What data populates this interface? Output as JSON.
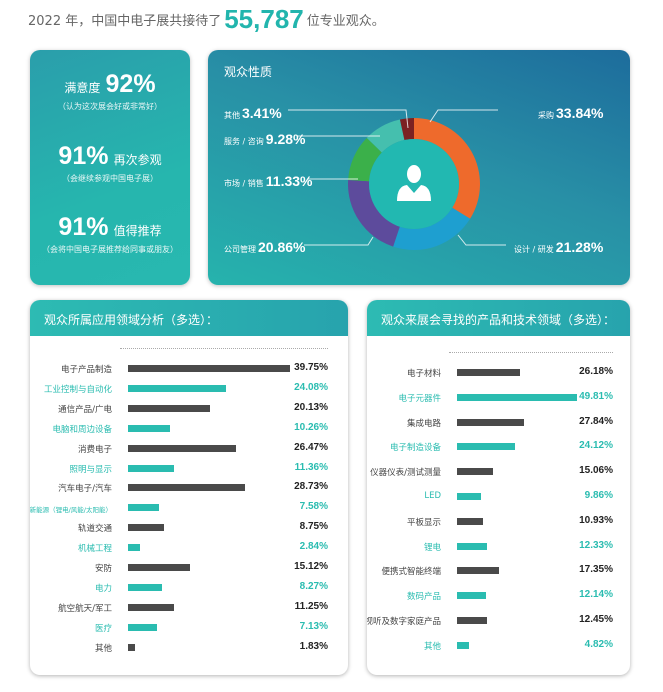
{
  "headline": {
    "prefix": "2022 年，中国中电子展共接待了",
    "number": "55,787",
    "suffix": "位专业观众。"
  },
  "stats": [
    {
      "label": "满意度",
      "value": "92%",
      "note": "（认为这次展会好或非常好）"
    },
    {
      "label": "再次参观",
      "value": "91%",
      "note": "（会继续参观中国电子展）"
    },
    {
      "label": "值得推荐",
      "value": "91%",
      "note": "（会将中国电子展推荐给同事或朋友）"
    }
  ],
  "colors": {
    "teal": "#2abcb0",
    "dark": "#4a4a4a"
  },
  "chart_data": [
    {
      "type": "pie",
      "title": "观众性质",
      "icon": "person-icon",
      "categories": [
        "采购",
        "设计 / 研发",
        "公司管理",
        "市场 / 销售",
        "服务 / 咨询",
        "其他"
      ],
      "values": [
        33.84,
        21.28,
        20.86,
        11.33,
        9.28,
        3.41
      ],
      "labels": [
        "33.84%",
        "21.28%",
        "20.86%",
        "11.33%",
        "9.28%",
        "3.41%"
      ],
      "colors": [
        "#ee6a2c",
        "#1e9fd0",
        "#5d4b9c",
        "#3bb04a",
        "#45bfae",
        "#7b2222"
      ]
    },
    {
      "type": "bar",
      "orientation": "horizontal",
      "title": "观众所属应用领域分析（多选）：",
      "categories": [
        "电子产品制造",
        "工业控制与自动化",
        "通信产品/广电",
        "电脑和周边设备",
        "消费电子",
        "照明与显示",
        "汽车电子/汽车",
        "新能源（锂电/风能/太阳能）",
        "轨道交通",
        "机械工程",
        "安防",
        "电力",
        "航空航天/军工",
        "医疗",
        "其他"
      ],
      "values": [
        39.75,
        24.08,
        20.13,
        10.26,
        26.47,
        11.36,
        28.73,
        7.58,
        8.75,
        2.84,
        15.12,
        8.27,
        11.25,
        7.13,
        1.83
      ],
      "labels": [
        "39.75%",
        "24.08%",
        "20.13%",
        "10.26%",
        "26.47%",
        "11.36%",
        "28.73%",
        "7.58%",
        "8.75%",
        "2.84%",
        "15.12%",
        "8.27%",
        "11.25%",
        "7.13%",
        "1.83%"
      ]
    },
    {
      "type": "bar",
      "orientation": "horizontal",
      "title": "观众来展会寻找的产品和技术领域（多选）：",
      "categories": [
        "电子材料",
        "电子元器件",
        "集成电路",
        "电子制造设备",
        "仪器仪表/测试测量",
        "LED",
        "平板显示",
        "锂电",
        "便携式智能终端",
        "数码产品",
        "视听及数字家庭产品",
        "其他"
      ],
      "values": [
        26.18,
        49.81,
        27.84,
        24.12,
        15.06,
        9.86,
        10.93,
        12.33,
        17.35,
        12.14,
        12.45,
        4.82
      ],
      "labels": [
        "26.18%",
        "49.81%",
        "27.84%",
        "24.12%",
        "15.06%",
        "9.86%",
        "10.93%",
        "12.33%",
        "17.35%",
        "12.14%",
        "12.45%",
        "4.82%"
      ]
    }
  ]
}
